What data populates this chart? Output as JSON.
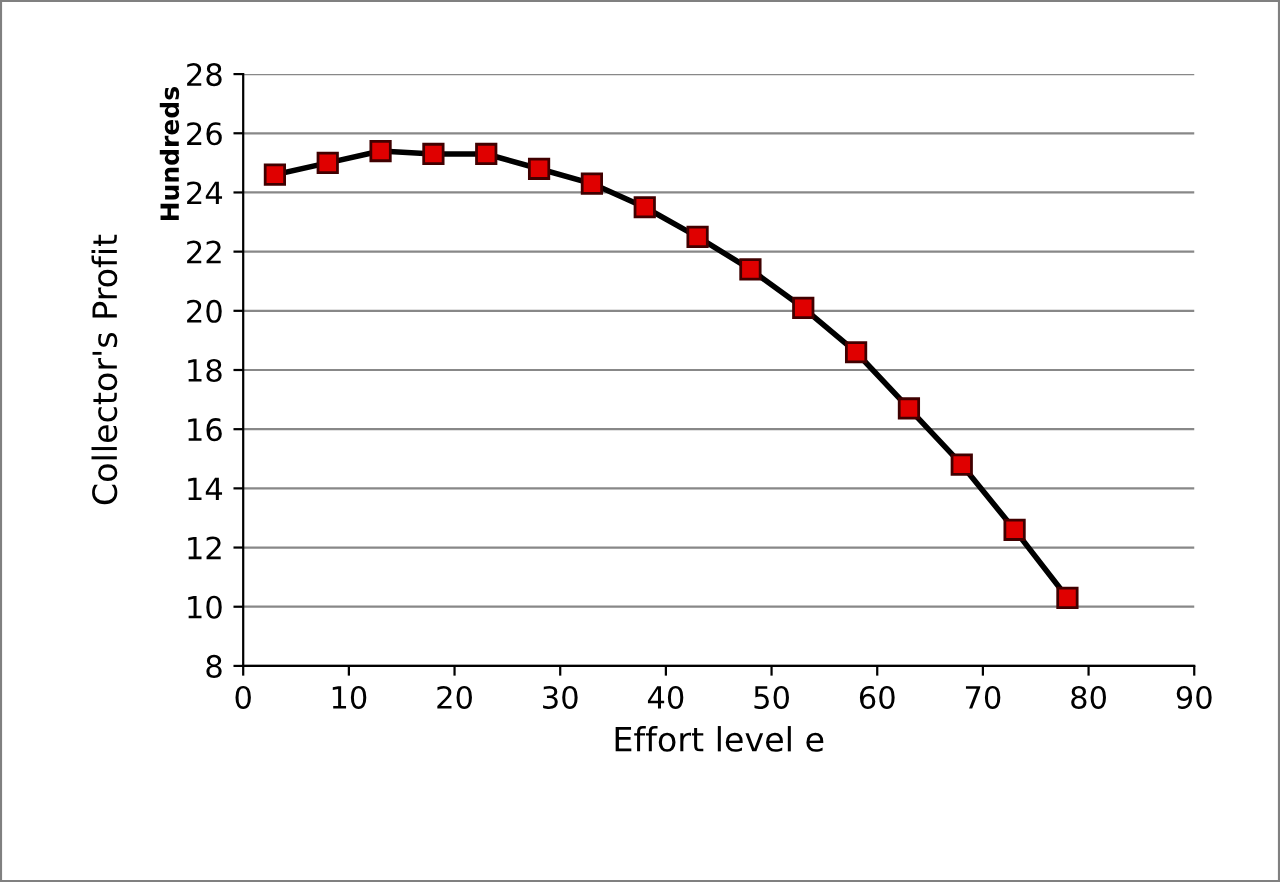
{
  "chart_data": {
    "type": "line",
    "xlabel": "Effort level e",
    "ylabel": "Collector's Profit",
    "annotations": [
      "Hundreds"
    ],
    "x": [
      3,
      8,
      13,
      18,
      23,
      28,
      33,
      38,
      43,
      48,
      53,
      58,
      63,
      68,
      73,
      78
    ],
    "series": [
      {
        "color": "#000000",
        "values": [
          24.6,
          25.0,
          25.4,
          25.3,
          25.3,
          24.8,
          24.3,
          23.5,
          22.5,
          21.4,
          20.1,
          18.6,
          16.7,
          14.8,
          12.6,
          10.3
        ]
      }
    ],
    "marker": "square",
    "line_style": "solid",
    "xlim": [
      0,
      90
    ],
    "xticks": [
      0,
      10,
      20,
      30,
      40,
      50,
      60,
      70,
      80,
      90
    ],
    "ylim": [
      8,
      28
    ],
    "yticks": [
      8,
      10,
      12,
      14,
      16,
      18,
      20,
      22,
      24,
      26,
      28
    ],
    "grid": "y",
    "legend": false
  }
}
